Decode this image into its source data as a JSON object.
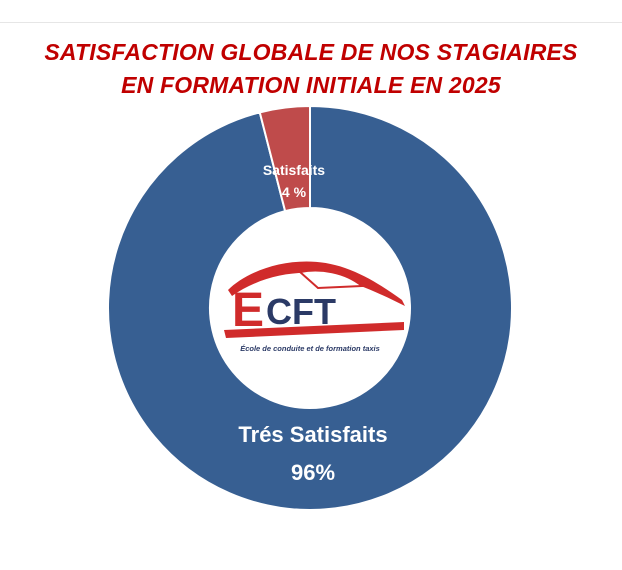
{
  "title": {
    "line1": "SATISFACTION GLOBALE DE NOS STAGIAIRES",
    "line2": "EN FORMATION INITIALE EN 2025"
  },
  "colors": {
    "title": "#c00000",
    "tres_satisfaits": "#375f92",
    "satisfaits": "#bf4b4b",
    "logo_red": "#d02b2b",
    "logo_navy": "#2b3a66"
  },
  "logo": {
    "text": "ECFT",
    "subtitle": "École de conduite et de formation taxis"
  },
  "chart_data": {
    "type": "pie",
    "style": "donut",
    "title": "SATISFACTION GLOBALE DE NOS STAGIAIRES EN FORMATION INITIALE EN 2025",
    "slices": [
      {
        "label": "Trés Satisfaits",
        "value": 96,
        "value_label": "96%",
        "color": "#375f92"
      },
      {
        "label": "Satisfaits",
        "value": 4,
        "value_label": "4 %",
        "color": "#bf4b4b"
      }
    ]
  }
}
